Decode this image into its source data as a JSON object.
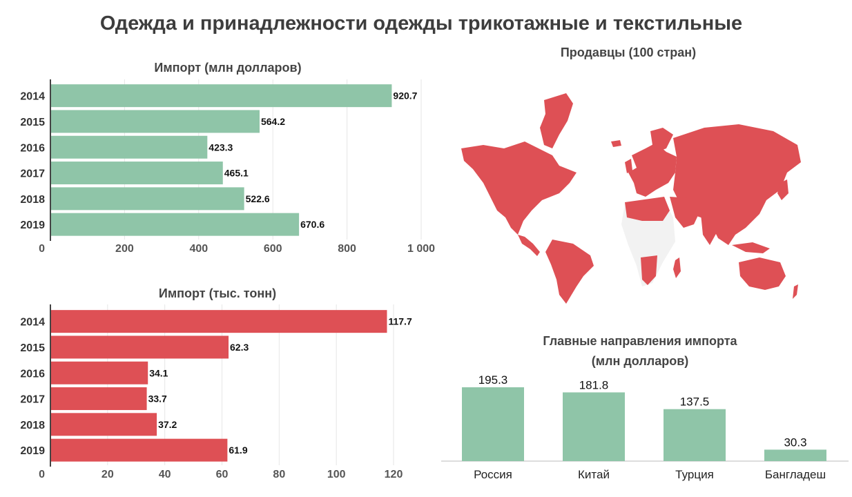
{
  "title": "Одежда и принадлежности одежды трикотажные и текстильные",
  "colors": {
    "green": "#8fc5a8",
    "red": "#de5055",
    "grid": "#e6e6e6",
    "axis": "#444444"
  },
  "chart_data": [
    {
      "type": "bar",
      "orientation": "horizontal",
      "title": "Импорт (млн долларов)",
      "categories": [
        "2014",
        "2015",
        "2016",
        "2017",
        "2018",
        "2019"
      ],
      "values": [
        920.7,
        564.2,
        423.3,
        465.1,
        522.6,
        670.6
      ],
      "xlim": [
        0,
        1000
      ],
      "ticks": [
        0,
        200,
        400,
        600,
        800,
        1000
      ],
      "tick_labels": [
        "0",
        "200",
        "400",
        "600",
        "800",
        "1 000"
      ],
      "color": "#8fc5a8",
      "grid": true
    },
    {
      "type": "bar",
      "orientation": "horizontal",
      "title": "Импорт (тыс. тонн)",
      "categories": [
        "2014",
        "2015",
        "2016",
        "2017",
        "2018",
        "2019"
      ],
      "values": [
        117.7,
        62.3,
        34.1,
        33.7,
        37.2,
        61.9
      ],
      "xlim": [
        0,
        120
      ],
      "ticks": [
        0,
        20,
        40,
        60,
        80,
        100,
        120
      ],
      "tick_labels": [
        "0",
        "20",
        "40",
        "60",
        "80",
        "100",
        "120"
      ],
      "color": "#de5055",
      "grid": true
    },
    {
      "type": "bar",
      "orientation": "vertical",
      "title": "Главные направления импорта",
      "subtitle": "(млн долларов)",
      "categories": [
        "Россия",
        "Китай",
        "Турция",
        "Бангладеш"
      ],
      "values": [
        195.3,
        181.8,
        137.5,
        30.3
      ],
      "ylim": [
        0,
        210
      ],
      "color": "#8fc5a8",
      "grid": false
    }
  ],
  "map": {
    "title": "Продавцы (100 стран)",
    "highlight_color": "#de5055",
    "other_color": "#f2f2f2"
  }
}
